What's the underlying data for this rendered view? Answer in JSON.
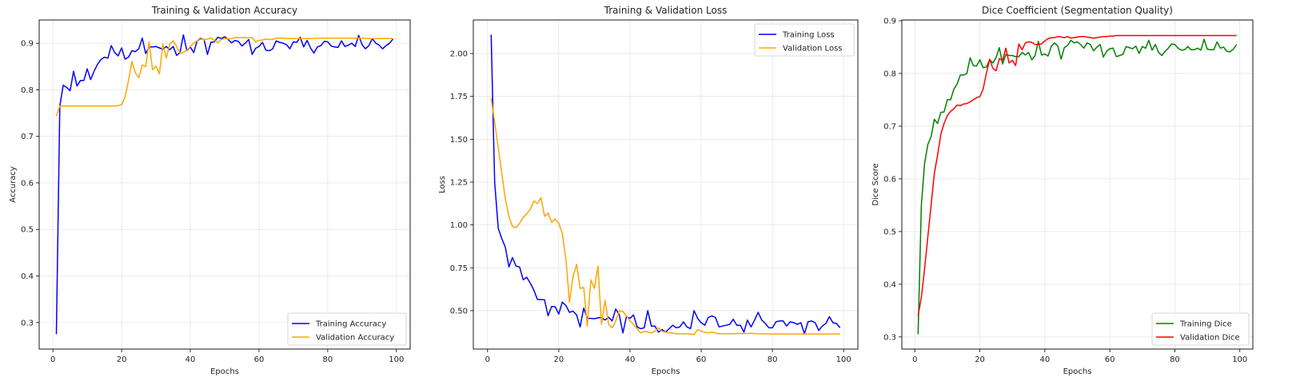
{
  "chart_data": [
    {
      "type": "line",
      "title": "Training & Validation Accuracy",
      "xlabel": "Epochs",
      "ylabel": "Accuracy",
      "xlim": [
        -4,
        104
      ],
      "ylim": [
        0.243,
        0.95
      ],
      "xticks": [
        0,
        20,
        40,
        60,
        80,
        100
      ],
      "yticks": [
        0.3,
        0.4,
        0.5,
        0.6,
        0.7,
        0.8,
        0.9
      ],
      "ytick_decimals": 1,
      "grid": true,
      "legend": "lower-right",
      "x_start": 1,
      "series": [
        {
          "name": "Training Accuracy",
          "color": "#0000ff",
          "values": [
            0.275,
            0.765,
            0.81,
            0.805,
            0.798,
            0.84,
            0.808,
            0.82,
            0.82,
            0.845,
            0.822,
            0.84,
            0.855,
            0.865,
            0.87,
            0.868,
            0.895,
            0.88,
            0.873,
            0.89,
            0.866,
            0.87,
            0.884,
            0.882,
            0.888,
            0.911,
            0.878,
            0.892,
            0.892,
            0.893,
            0.89,
            0.887,
            0.893,
            0.886,
            0.893,
            0.874,
            0.88,
            0.918,
            0.884,
            0.892,
            0.88,
            0.905,
            0.91,
            0.908,
            0.876,
            0.902,
            0.903,
            0.913,
            0.91,
            0.914,
            0.908,
            0.901,
            0.906,
            0.904,
            0.894,
            0.9,
            0.908,
            0.876,
            0.889,
            0.893,
            0.902,
            0.885,
            0.884,
            0.888,
            0.905,
            0.902,
            0.9,
            0.897,
            0.888,
            0.903,
            0.902,
            0.913,
            0.892,
            0.906,
            0.89,
            0.879,
            0.892,
            0.895,
            0.904,
            0.903,
            0.894,
            0.892,
            0.891,
            0.905,
            0.893,
            0.896,
            0.9,
            0.893,
            0.917,
            0.897,
            0.888,
            0.895,
            0.91,
            0.9,
            0.896,
            0.888,
            0.895,
            0.9,
            0.909
          ]
        },
        {
          "name": "Validation Accuracy",
          "color": "#ffa500",
          "values": [
            0.744,
            0.765,
            0.765,
            0.765,
            0.765,
            0.765,
            0.765,
            0.765,
            0.765,
            0.765,
            0.765,
            0.765,
            0.765,
            0.765,
            0.765,
            0.765,
            0.765,
            0.765,
            0.766,
            0.768,
            0.785,
            0.82,
            0.861,
            0.836,
            0.826,
            0.853,
            0.85,
            0.903,
            0.843,
            0.851,
            0.834,
            0.898,
            0.868,
            0.898,
            0.905,
            0.893,
            0.879,
            0.88,
            0.885,
            0.893,
            0.9,
            0.905,
            0.912,
            0.907,
            0.909,
            0.911,
            0.906,
            0.901,
            0.908,
            0.91,
            0.909,
            0.91,
            0.912,
            0.912,
            0.912,
            0.912,
            0.912,
            0.912,
            0.903,
            0.906,
            0.907,
            0.909,
            0.908,
            0.908,
            0.911,
            0.911,
            0.911,
            0.91,
            0.91,
            0.91,
            0.91,
            0.91,
            0.91,
            0.91,
            0.91,
            0.91,
            0.911,
            0.911,
            0.911,
            0.911,
            0.911,
            0.911,
            0.911,
            0.911,
            0.911,
            0.911,
            0.911,
            0.911,
            0.911,
            0.911,
            0.91,
            0.91,
            0.91,
            0.91,
            0.91,
            0.91,
            0.91,
            0.91,
            0.91
          ]
        }
      ]
    },
    {
      "type": "line",
      "title": "Training & Validation Loss",
      "xlabel": "Epochs",
      "ylabel": "Loss",
      "xlim": [
        -4,
        104
      ],
      "ylim": [
        0.276,
        2.196
      ],
      "xticks": [
        0,
        20,
        40,
        60,
        80,
        100
      ],
      "yticks": [
        0.5,
        0.75,
        1.0,
        1.25,
        1.5,
        1.75,
        2.0
      ],
      "ytick_decimals": 2,
      "grid": true,
      "legend": "upper-right",
      "x_start": 1,
      "series": [
        {
          "name": "Training Loss",
          "color": "#0000ff",
          "values": [
            2.11,
            1.25,
            0.98,
            0.92,
            0.87,
            0.755,
            0.81,
            0.76,
            0.755,
            0.68,
            0.695,
            0.66,
            0.62,
            0.565,
            0.565,
            0.563,
            0.47,
            0.525,
            0.523,
            0.48,
            0.55,
            0.53,
            0.49,
            0.497,
            0.475,
            0.405,
            0.515,
            0.455,
            0.455,
            0.453,
            0.458,
            0.46,
            0.445,
            0.462,
            0.44,
            0.51,
            0.475,
            0.37,
            0.465,
            0.455,
            0.475,
            0.405,
            0.395,
            0.4,
            0.5,
            0.41,
            0.41,
            0.375,
            0.39,
            0.375,
            0.395,
            0.415,
            0.4,
            0.405,
            0.435,
            0.405,
            0.395,
            0.5,
            0.455,
            0.43,
            0.415,
            0.46,
            0.47,
            0.46,
            0.405,
            0.41,
            0.415,
            0.42,
            0.45,
            0.415,
            0.415,
            0.375,
            0.445,
            0.405,
            0.445,
            0.49,
            0.445,
            0.425,
            0.4,
            0.4,
            0.435,
            0.44,
            0.44,
            0.41,
            0.435,
            0.43,
            0.42,
            0.43,
            0.365,
            0.435,
            0.44,
            0.43,
            0.385,
            0.41,
            0.425,
            0.465,
            0.43,
            0.425,
            0.4
          ]
        },
        {
          "name": "Validation Loss",
          "color": "#ffa500",
          "values": [
            1.74,
            1.6,
            1.45,
            1.3,
            1.15,
            1.05,
            0.99,
            0.985,
            1.01,
            1.045,
            1.065,
            1.09,
            1.14,
            1.125,
            1.16,
            1.05,
            1.07,
            1.015,
            1.035,
            1.01,
            0.95,
            0.8,
            0.55,
            0.7,
            0.77,
            0.63,
            0.635,
            0.41,
            0.68,
            0.63,
            0.76,
            0.42,
            0.56,
            0.42,
            0.4,
            0.44,
            0.5,
            0.495,
            0.47,
            0.44,
            0.42,
            0.395,
            0.37,
            0.38,
            0.375,
            0.37,
            0.38,
            0.4,
            0.38,
            0.375,
            0.37,
            0.37,
            0.365,
            0.365,
            0.365,
            0.365,
            0.364,
            0.36,
            0.39,
            0.38,
            0.375,
            0.37,
            0.375,
            0.37,
            0.365,
            0.365,
            0.366,
            0.366,
            0.366,
            0.367,
            0.367,
            0.367,
            0.367,
            0.368,
            0.366,
            0.365,
            0.365,
            0.364,
            0.364,
            0.364,
            0.364,
            0.364,
            0.364,
            0.364,
            0.364,
            0.364,
            0.364,
            0.364,
            0.364,
            0.364,
            0.364,
            0.364,
            0.364,
            0.364,
            0.364,
            0.364,
            0.364,
            0.364,
            0.364
          ]
        }
      ]
    },
    {
      "type": "line",
      "title": "Dice Coefficient (Segmentation Quality)",
      "xlabel": "Epochs",
      "ylabel": "Dice Score",
      "xlim": [
        -4,
        104
      ],
      "ylim": [
        0.277,
        0.9015
      ],
      "xticks": [
        0,
        20,
        40,
        60,
        80,
        100
      ],
      "yticks": [
        0.3,
        0.4,
        0.5,
        0.6,
        0.7,
        0.8,
        0.9
      ],
      "ytick_decimals": 1,
      "grid": true,
      "legend": "lower-right",
      "x_start": 1,
      "series": [
        {
          "name": "Training Dice",
          "color": "#008000",
          "values": [
            0.305,
            0.55,
            0.63,
            0.665,
            0.68,
            0.713,
            0.705,
            0.726,
            0.727,
            0.75,
            0.75,
            0.77,
            0.78,
            0.797,
            0.797,
            0.8,
            0.83,
            0.815,
            0.814,
            0.826,
            0.811,
            0.812,
            0.826,
            0.82,
            0.83,
            0.849,
            0.818,
            0.836,
            0.834,
            0.834,
            0.832,
            0.832,
            0.84,
            0.835,
            0.84,
            0.826,
            0.834,
            0.861,
            0.835,
            0.837,
            0.833,
            0.852,
            0.858,
            0.852,
            0.827,
            0.849,
            0.853,
            0.863,
            0.858,
            0.86,
            0.855,
            0.848,
            0.858,
            0.855,
            0.843,
            0.85,
            0.855,
            0.831,
            0.842,
            0.847,
            0.848,
            0.832,
            0.834,
            0.836,
            0.851,
            0.849,
            0.847,
            0.852,
            0.838,
            0.851,
            0.848,
            0.863,
            0.844,
            0.855,
            0.84,
            0.834,
            0.842,
            0.848,
            0.856,
            0.855,
            0.848,
            0.844,
            0.845,
            0.851,
            0.845,
            0.845,
            0.848,
            0.844,
            0.865,
            0.846,
            0.845,
            0.845,
            0.86,
            0.848,
            0.85,
            0.842,
            0.841,
            0.846,
            0.855
          ]
        },
        {
          "name": "Validation Dice",
          "color": "#ff0000",
          "values": [
            0.34,
            0.375,
            0.43,
            0.49,
            0.55,
            0.61,
            0.645,
            0.685,
            0.705,
            0.72,
            0.728,
            0.733,
            0.74,
            0.739,
            0.742,
            0.743,
            0.746,
            0.75,
            0.754,
            0.756,
            0.77,
            0.8,
            0.827,
            0.81,
            0.805,
            0.828,
            0.825,
            0.848,
            0.82,
            0.825,
            0.815,
            0.856,
            0.845,
            0.858,
            0.86,
            0.859,
            0.855,
            0.855,
            0.856,
            0.862,
            0.866,
            0.868,
            0.868,
            0.87,
            0.869,
            0.868,
            0.87,
            0.867,
            0.868,
            0.869,
            0.87,
            0.87,
            0.869,
            0.868,
            0.867,
            0.868,
            0.869,
            0.87,
            0.87,
            0.871,
            0.871,
            0.872,
            0.872,
            0.872,
            0.872,
            0.872,
            0.872,
            0.872,
            0.872,
            0.872,
            0.872,
            0.872,
            0.872,
            0.872,
            0.872,
            0.872,
            0.872,
            0.872,
            0.872,
            0.872,
            0.872,
            0.872,
            0.872,
            0.872,
            0.872,
            0.872,
            0.872,
            0.872,
            0.872,
            0.872,
            0.872,
            0.872,
            0.872,
            0.872,
            0.872,
            0.872,
            0.872,
            0.872,
            0.872
          ]
        }
      ]
    }
  ]
}
